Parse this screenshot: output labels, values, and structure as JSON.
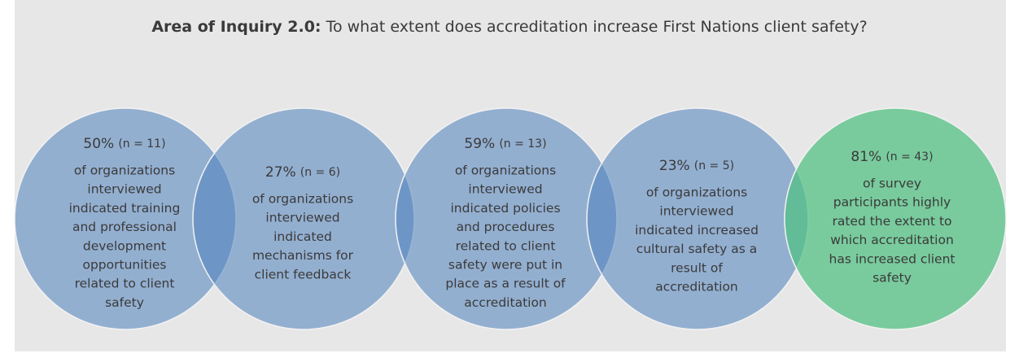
{
  "header": {
    "title_bold": "Area of Inquiry 2.0:",
    "title_rest": "To what extent does accreditation increase First Nations client safety?"
  },
  "circles": [
    {
      "stat": "50%",
      "n": "(n = 11)",
      "lines": [
        "of organizations",
        "interviewed",
        "indicated training",
        "and professional",
        "development",
        "opportunities",
        "related to client",
        "safety"
      ]
    },
    {
      "stat": "27%",
      "n": "(n = 6)",
      "lines": [
        "of organizations",
        "interviewed",
        "indicated",
        "mechanisms for",
        "client feedback"
      ]
    },
    {
      "stat": "59%",
      "n": "(n = 13)",
      "lines": [
        "of organizations",
        "interviewed",
        "indicated policies",
        "and procedures",
        "related to client",
        "safety were put in",
        "place as a result of",
        "accreditation"
      ]
    },
    {
      "stat": "23%",
      "n": "(n = 5)",
      "lines": [
        "of organizations",
        "interviewed",
        "indicated increased",
        "cultural safety as a",
        "result of",
        "accreditation"
      ]
    },
    {
      "stat": "81%",
      "n": "(n = 43)",
      "lines": [
        "of survey",
        "participants highly",
        "rated the extent to",
        "which accreditation",
        "has increased client",
        "safety"
      ]
    }
  ]
}
